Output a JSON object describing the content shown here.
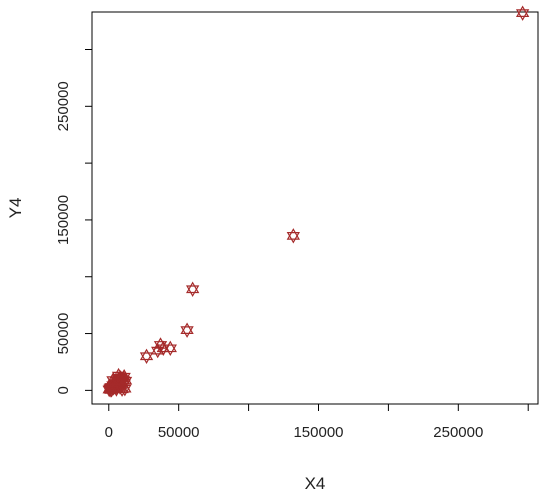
{
  "chart_data": {
    "type": "scatter",
    "title": "",
    "xlabel": "X4",
    "ylabel": "Y4",
    "xlim": [
      -12000,
      307000
    ],
    "ylim": [
      -12000,
      333000
    ],
    "x_ticks": [
      0,
      50000,
      100000,
      150000,
      200000,
      250000,
      300000
    ],
    "x_tick_labels": [
      "0",
      "50000",
      "",
      "150000",
      "",
      "250000",
      ""
    ],
    "y_ticks": [
      0,
      50000,
      100000,
      150000,
      200000,
      250000,
      300000
    ],
    "y_tick_labels": [
      "0",
      "50000",
      "",
      "150000",
      "",
      "250000",
      ""
    ],
    "grid": false,
    "marker": "star-of-david",
    "marker_color": "#a52a2a",
    "points": [
      {
        "x": 300,
        "y": 700
      },
      {
        "x": 800,
        "y": 1500
      },
      {
        "x": 1200,
        "y": 2500
      },
      {
        "x": 1500,
        "y": 400
      },
      {
        "x": 2000,
        "y": 3000
      },
      {
        "x": 2500,
        "y": 1800
      },
      {
        "x": 3000,
        "y": 4500
      },
      {
        "x": 3500,
        "y": 2200
      },
      {
        "x": 4000,
        "y": 5500
      },
      {
        "x": 4500,
        "y": 3500
      },
      {
        "x": 5000,
        "y": 6500
      },
      {
        "x": 5500,
        "y": 1200
      },
      {
        "x": 6000,
        "y": 8000
      },
      {
        "x": 6500,
        "y": 4000
      },
      {
        "x": 7000,
        "y": 10000
      },
      {
        "x": 7500,
        "y": 6000
      },
      {
        "x": 8000,
        "y": 3000
      },
      {
        "x": 8500,
        "y": 11000
      },
      {
        "x": 9000,
        "y": 7500
      },
      {
        "x": 10000,
        "y": 5000
      },
      {
        "x": 10500,
        "y": 9000
      },
      {
        "x": 11000,
        "y": 12000
      },
      {
        "x": 11500,
        "y": 1500
      },
      {
        "x": 12000,
        "y": 8500
      },
      {
        "x": 2000,
        "y": 500
      },
      {
        "x": 3000,
        "y": 9000
      },
      {
        "x": 5000,
        "y": 2500
      },
      {
        "x": 9500,
        "y": 1000
      },
      {
        "x": 7000,
        "y": 13000
      },
      {
        "x": 27000,
        "y": 30000
      },
      {
        "x": 35000,
        "y": 35000
      },
      {
        "x": 37000,
        "y": 40000
      },
      {
        "x": 39000,
        "y": 37000
      },
      {
        "x": 44000,
        "y": 37000
      },
      {
        "x": 56000,
        "y": 53000
      },
      {
        "x": 60000,
        "y": 89000
      },
      {
        "x": 132000,
        "y": 136000
      },
      {
        "x": 296000,
        "y": 332000
      }
    ]
  }
}
